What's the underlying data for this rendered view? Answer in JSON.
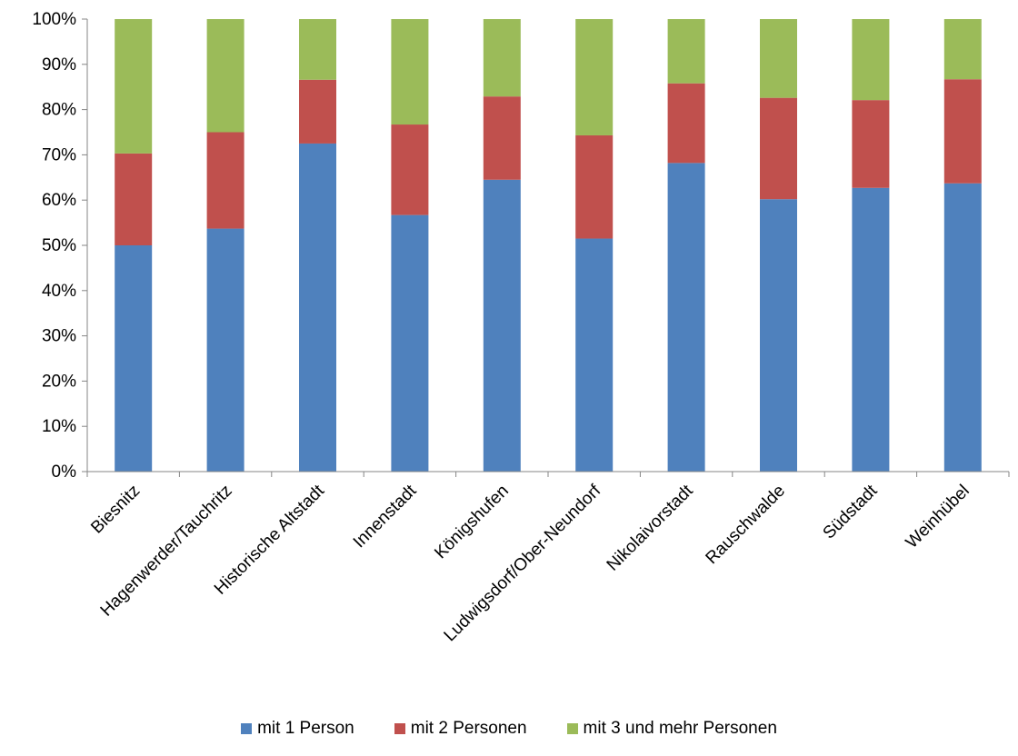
{
  "chart_data": {
    "type": "bar",
    "stacked": true,
    "categories": [
      "Biesnitz",
      "Hagenwerder/Tauchritz",
      "Historische Altstadt",
      "Innenstadt",
      "Königshufen",
      "Ludwigsdorf/Ober-Neundorf",
      "Nikolaivorstadt",
      "Rauschwalde",
      "Südstadt",
      "Weinhübel"
    ],
    "series": [
      {
        "name": "mit 1 Person",
        "color": "#4F81BD",
        "values": [
          50,
          53.7,
          72.5,
          56.7,
          64.5,
          51.5,
          68.2,
          60.2,
          62.7,
          63.7
        ]
      },
      {
        "name": "mit 2 Personen",
        "color": "#C0504D",
        "values": [
          20.3,
          21.3,
          14.1,
          20,
          18.4,
          22.8,
          17.6,
          22.4,
          19.4,
          23
        ]
      },
      {
        "name": "mit  3 und mehr Personen",
        "color": "#9BBB59",
        "values": [
          29.7,
          25,
          13.4,
          23.3,
          17.1,
          25.7,
          14.2,
          17.4,
          17.9,
          13.3
        ]
      }
    ],
    "ylim": [
      0,
      100
    ],
    "yticks": [
      "0%",
      "10%",
      "20%",
      "30%",
      "40%",
      "50%",
      "60%",
      "70%",
      "80%",
      "90%",
      "100%"
    ],
    "title": "",
    "xlabel": "",
    "ylabel": "",
    "grid": false,
    "legend_position": "bottom"
  }
}
